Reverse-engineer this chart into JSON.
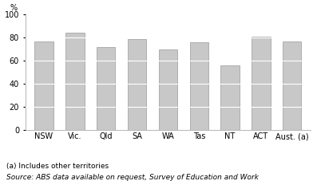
{
  "categories": [
    "NSW",
    "Vic.",
    "Qld",
    "SA",
    "WA",
    "Tas",
    "NT",
    "ACT",
    "Aust. (a)"
  ],
  "values": [
    77.0,
    84.5,
    72.0,
    78.5,
    70.0,
    76.0,
    56.0,
    80.5,
    77.0
  ],
  "bar_color": "#c8c8c8",
  "bar_edge_color": "#999999",
  "bar_edge_width": 0.5,
  "ylabel": "%",
  "ylim": [
    0,
    100
  ],
  "yticks": [
    0,
    20,
    40,
    60,
    80,
    100
  ],
  "grid_color": "#ffffff",
  "grid_linewidth": 0.8,
  "footnote1": "(a) Includes other territories",
  "footnote2": "Source: ABS data available on request, Survey of Education and Work",
  "footnote_fontsize": 6.5,
  "tick_fontsize": 7,
  "ylabel_fontsize": 7,
  "bar_width": 0.6,
  "background_color": "#ffffff",
  "axes_linecolor": "#999999"
}
